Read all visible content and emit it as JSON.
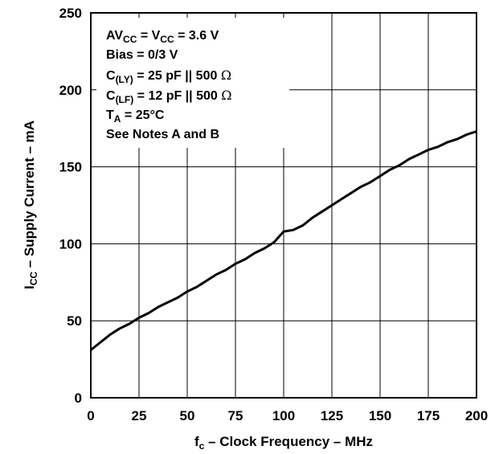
{
  "chart_data": {
    "type": "line",
    "xlabel": {
      "main": "f",
      "sub": "c",
      "rest": " – Clock Frequency – MHz"
    },
    "ylabel": {
      "main": "I",
      "sub": "CC",
      "rest": " – Supply Current – mA"
    },
    "xlim": [
      0,
      200
    ],
    "ylim": [
      0,
      250
    ],
    "x_ticks": [
      "0",
      "25",
      "50",
      "75",
      "100",
      "125",
      "150",
      "175",
      "200"
    ],
    "y_ticks": [
      "0",
      "50",
      "100",
      "150",
      "200",
      "250"
    ],
    "grid": true,
    "series": [
      {
        "x": [
          0,
          5,
          10,
          15,
          20,
          25,
          30,
          35,
          40,
          45,
          50,
          55,
          60,
          65,
          70,
          75,
          80,
          85,
          90,
          95,
          100,
          105,
          110,
          115,
          120,
          125,
          130,
          135,
          140,
          145,
          150,
          155,
          160,
          165,
          170,
          175,
          180,
          185,
          190,
          195,
          200
        ],
        "y": [
          31,
          36,
          41,
          45,
          48,
          52,
          55,
          59,
          62,
          65,
          69,
          72,
          76,
          80,
          83,
          87,
          90,
          94,
          97,
          101,
          108,
          109,
          112,
          117,
          121,
          125,
          129,
          133,
          137,
          140,
          144,
          148,
          151,
          155,
          158,
          161,
          163,
          166,
          168,
          171,
          173
        ]
      }
    ],
    "annotations": {
      "line1": {
        "a": "AV",
        "a_sub": "CC",
        "b": " = V",
        "b_sub": "CC",
        "c": " = 3.6 V"
      },
      "line2": "Bias = 0/3 V",
      "line3": {
        "a": "C",
        "a_sub": "(LY)",
        "b": " = 25 pF || 500 ",
        "sym": "Ω"
      },
      "line4": {
        "a": "C",
        "a_sub": "(LF)",
        "b": " = 12 pF || 500 ",
        "sym": "Ω"
      },
      "line5": {
        "a": "T",
        "a_sub": "A",
        "b": " = 25°C"
      },
      "line6": "See Notes A and  B"
    }
  }
}
